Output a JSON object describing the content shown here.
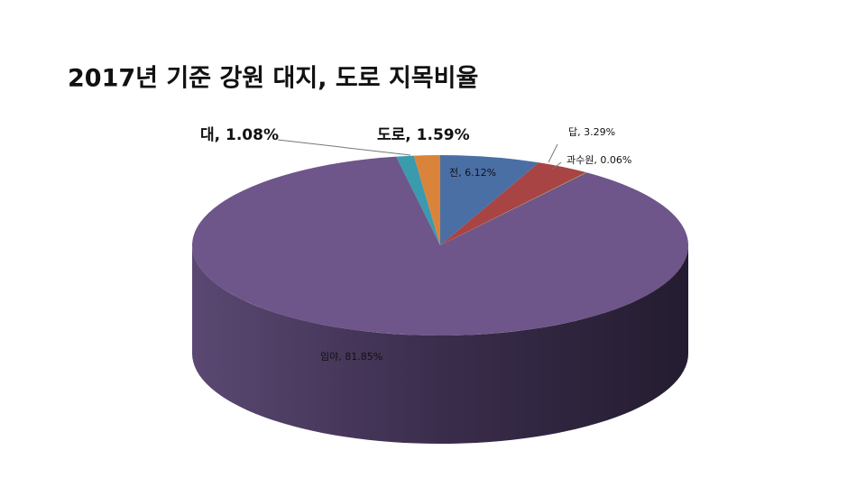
{
  "chart_data": {
    "type": "pie3d",
    "title": "2017년 기준 강원 대지, 도로 지목비율",
    "labels": [
      "전, 6.12%",
      "답, 3.29%",
      "과수원, 0.06%",
      "임야, 81.85%",
      "대, 1.08%",
      "도로, 1.59%"
    ],
    "values": [
      6.12,
      3.29,
      0.06,
      81.85,
      1.08,
      1.59
    ],
    "colors": [
      "#4a6fa5",
      "#a84444",
      "#86a14a",
      "#6e558a",
      "#3a9aae",
      "#d9843a"
    ]
  }
}
